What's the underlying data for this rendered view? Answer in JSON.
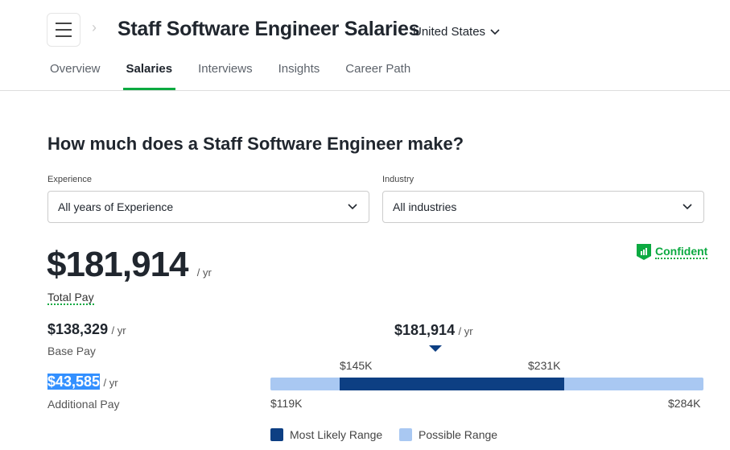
{
  "header": {
    "title": "Staff Software Engineer Salaries",
    "country": "United States"
  },
  "tabs": [
    {
      "label": "Overview"
    },
    {
      "label": "Salaries",
      "active": true
    },
    {
      "label": "Interviews"
    },
    {
      "label": "Insights"
    },
    {
      "label": "Career Path"
    }
  ],
  "heading": "How much does a Staff Software Engineer make?",
  "filters": {
    "experience_label": "Experience",
    "experience_value": "All years of Experience",
    "industry_label": "Industry",
    "industry_value": "All industries"
  },
  "confidence": "Confident",
  "total": {
    "value": "$181,914",
    "unit": "/ yr",
    "label": "Total Pay"
  },
  "base": {
    "value": "$138,329",
    "unit": "/ yr",
    "label": "Base Pay"
  },
  "additional": {
    "value": "$43,585",
    "unit": "/ yr",
    "label": "Additional Pay"
  },
  "range": {
    "median": "$181,914",
    "median_unit": "/ yr",
    "likely_low": "$145K",
    "likely_high": "$231K",
    "min": "$119K",
    "max": "$284K"
  },
  "legend": {
    "likely": "Most Likely Range",
    "possible": "Possible Range"
  },
  "colors": {
    "accent": "#0caa41",
    "likely": "#0d3f83",
    "possible": "#a9c8f2"
  }
}
